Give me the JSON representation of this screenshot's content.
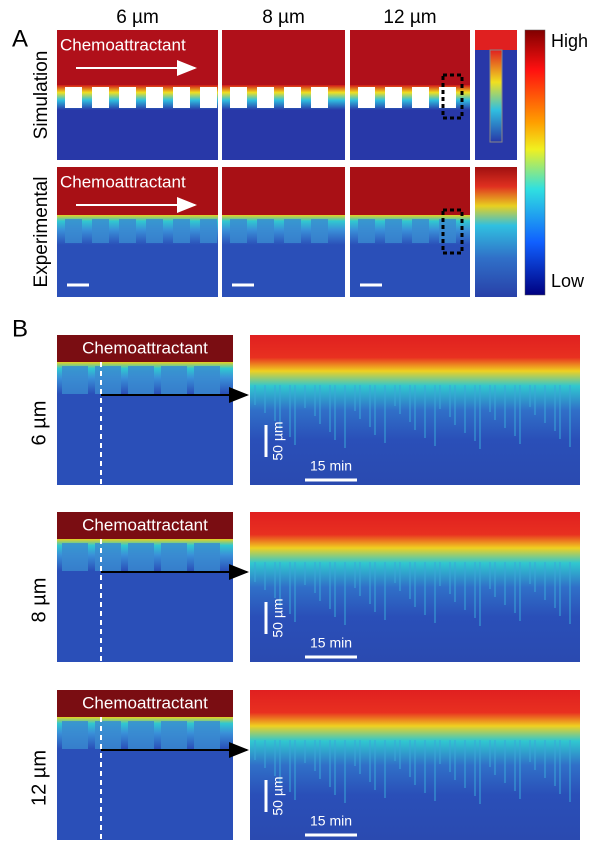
{
  "panel_a": {
    "label": "A",
    "columns": [
      "6 µm",
      "8 µm",
      "12 µm"
    ],
    "rows": [
      {
        "label": "Simulation",
        "annotation": "Chemoattractant"
      },
      {
        "label": "Experimental",
        "annotation": "Chemoattractant"
      }
    ],
    "colorbar": {
      "high": "High",
      "low": "Low"
    }
  },
  "panel_b": {
    "label": "B",
    "rows": [
      {
        "label": "6 µm",
        "annotation": "Chemoattractant",
        "scale_y": "50 µm",
        "scale_x": "15 min"
      },
      {
        "label": "8 µm",
        "annotation": "Chemoattractant",
        "scale_y": "50 µm",
        "scale_x": "15 min"
      },
      {
        "label": "12 µm",
        "annotation": "Chemoattractant",
        "scale_y": "50 µm",
        "scale_x": "15 min"
      }
    ]
  }
}
